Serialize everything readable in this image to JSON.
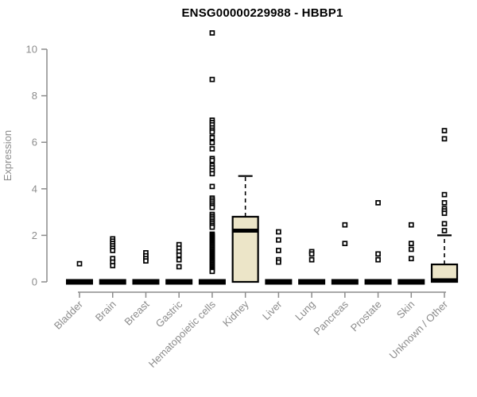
{
  "header": {
    "title": "ENSG00000229988 - HBBP1"
  },
  "chart_data": {
    "type": "boxplot",
    "title": "ENSG00000229988 - HBBP1",
    "xlabel": "",
    "ylabel": "Expression",
    "ylim": [
      0,
      10.9
    ],
    "yticks": [
      0,
      2,
      4,
      6,
      8,
      10
    ],
    "grid": false,
    "legend": null,
    "colors": {
      "box_fill": "#ECE5C8",
      "box_border": "#000000",
      "axis": "#8C8C8C",
      "tick_label": "#8C8C8C",
      "title": "#000000",
      "outlier_fill": "#ffffff",
      "outlier_stroke": "#000000"
    },
    "categories": [
      "Bladder",
      "Brain",
      "Breast",
      "Gastric",
      "Hematopoietic cells",
      "Kidney",
      "Liver",
      "Lung",
      "Pancreas",
      "Prostate",
      "Skin",
      "Unknown / Other"
    ],
    "series": [
      {
        "name": "Bladder",
        "slug": "bladder",
        "min": 0,
        "q1": 0,
        "median": 0,
        "q3": 0,
        "whisker_low": 0,
        "whisker_high": 0,
        "outliers": [
          0.78
        ]
      },
      {
        "name": "Brain",
        "slug": "brain",
        "min": 0,
        "q1": 0,
        "median": 0,
        "q3": 0,
        "whisker_low": 0,
        "whisker_high": 0,
        "outliers": [
          1.85,
          1.75,
          1.65,
          1.55,
          1.45,
          1.35,
          1.0,
          0.85,
          0.7
        ]
      },
      {
        "name": "Breast",
        "slug": "breast",
        "min": 0,
        "q1": 0,
        "median": 0,
        "q3": 0,
        "whisker_low": 0,
        "whisker_high": 0,
        "outliers": [
          1.25,
          1.12,
          1.0,
          0.9
        ]
      },
      {
        "name": "Gastric",
        "slug": "gastric",
        "min": 0,
        "q1": 0,
        "median": 0,
        "q3": 0,
        "whisker_low": 0,
        "whisker_high": 0,
        "outliers": [
          1.6,
          1.45,
          1.3,
          1.15,
          0.95,
          0.65
        ]
      },
      {
        "name": "Hematopoietic cells",
        "slug": "hematopoietic-cells",
        "min": 0,
        "q1": 0,
        "median": 0,
        "q3": 0,
        "whisker_low": 0,
        "whisker_high": 0,
        "outliers": [
          10.7,
          8.7,
          6.95,
          6.85,
          6.75,
          6.62,
          6.52,
          6.44,
          6.2,
          5.98,
          5.72,
          5.3,
          5.22,
          5.0,
          4.9,
          4.78,
          4.65,
          4.1,
          3.6,
          3.52,
          3.44,
          3.35,
          3.27,
          3.2,
          2.9,
          2.82,
          2.74,
          2.66,
          2.58,
          2.5,
          2.42,
          2.35,
          2.05,
          2.0,
          1.95,
          1.9,
          1.85,
          1.8,
          1.75,
          1.7,
          1.65,
          1.6,
          1.55,
          1.5,
          1.45,
          1.4,
          1.35,
          1.3,
          1.25,
          1.2,
          1.15,
          1.1,
          1.05,
          1.0,
          0.95,
          0.9,
          0.85,
          0.8,
          0.75,
          0.7,
          0.65,
          0.6,
          0.55,
          0.5,
          0.45
        ]
      },
      {
        "name": "Kidney",
        "slug": "kidney",
        "min": 0,
        "q1": 0,
        "median": 2.2,
        "q3": 2.8,
        "whisker_low": 0,
        "whisker_high": 4.55,
        "outliers": []
      },
      {
        "name": "Liver",
        "slug": "liver",
        "min": 0,
        "q1": 0,
        "median": 0,
        "q3": 0,
        "whisker_low": 0,
        "whisker_high": 0,
        "outliers": [
          2.15,
          1.8,
          1.35,
          0.95,
          0.85
        ]
      },
      {
        "name": "Lung",
        "slug": "lung",
        "min": 0,
        "q1": 0,
        "median": 0,
        "q3": 0,
        "whisker_low": 0,
        "whisker_high": 0,
        "outliers": [
          1.3,
          1.2,
          0.95
        ]
      },
      {
        "name": "Pancreas",
        "slug": "pancreas",
        "min": 0,
        "q1": 0,
        "median": 0,
        "q3": 0,
        "whisker_low": 0,
        "whisker_high": 0,
        "outliers": [
          2.45,
          1.65
        ]
      },
      {
        "name": "Prostate",
        "slug": "prostate",
        "min": 0,
        "q1": 0,
        "median": 0,
        "q3": 0,
        "whisker_low": 0,
        "whisker_high": 0,
        "outliers": [
          3.4,
          1.2,
          0.95
        ]
      },
      {
        "name": "Skin",
        "slug": "skin",
        "min": 0,
        "q1": 0,
        "median": 0,
        "q3": 0,
        "whisker_low": 0,
        "whisker_high": 0,
        "outliers": [
          2.45,
          1.65,
          1.4,
          1.0
        ]
      },
      {
        "name": "Unknown / Other",
        "slug": "unknown-other",
        "min": 0,
        "q1": 0,
        "median": 0.07,
        "q3": 0.75,
        "whisker_low": 0,
        "whisker_high": 2.0,
        "outliers": [
          6.5,
          6.15,
          3.75,
          3.4,
          3.15,
          3.05,
          2.95,
          2.5,
          2.2
        ]
      }
    ]
  }
}
